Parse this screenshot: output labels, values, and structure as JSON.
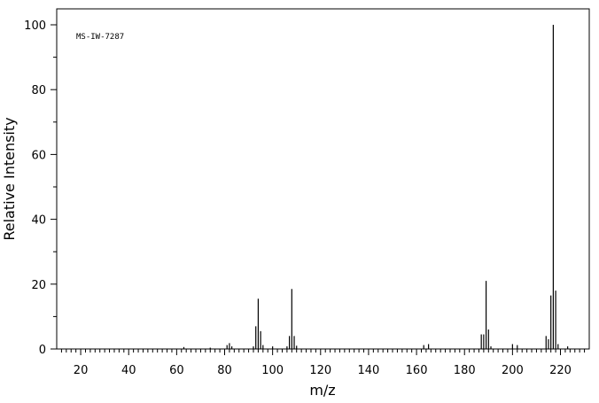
{
  "chart_data": {
    "type": "bar",
    "title": "",
    "annotation": "MS-IW-7287",
    "xlabel": "m/z",
    "ylabel": "Relative Intensity",
    "xlim": [
      10,
      232
    ],
    "ylim": [
      0,
      105
    ],
    "x_ticks": [
      20,
      40,
      60,
      80,
      100,
      120,
      140,
      160,
      180,
      200,
      220
    ],
    "x_tick_labels": [
      "20",
      "40",
      "60",
      "80",
      "100",
      "120",
      "140",
      "160",
      "180",
      "200",
      "220"
    ],
    "y_ticks": [
      0,
      20,
      40,
      60,
      80,
      100
    ],
    "y_tick_labels": [
      "0",
      "20",
      "40",
      "60",
      "80",
      "100"
    ],
    "grid": false,
    "legend": "none",
    "colors": {
      "bars": "#000000",
      "axes": "#000000",
      "background": "#ffffff"
    },
    "peaks": [
      {
        "mz": 63,
        "intensity": 0.6
      },
      {
        "mz": 74,
        "intensity": 0.4
      },
      {
        "mz": 81,
        "intensity": 1.2
      },
      {
        "mz": 82,
        "intensity": 1.8
      },
      {
        "mz": 83,
        "intensity": 0.8
      },
      {
        "mz": 92,
        "intensity": 0.8
      },
      {
        "mz": 93,
        "intensity": 7.0
      },
      {
        "mz": 94,
        "intensity": 15.5
      },
      {
        "mz": 95,
        "intensity": 5.5
      },
      {
        "mz": 96,
        "intensity": 1.2
      },
      {
        "mz": 100,
        "intensity": 0.8
      },
      {
        "mz": 106,
        "intensity": 0.8
      },
      {
        "mz": 107,
        "intensity": 4.0
      },
      {
        "mz": 108,
        "intensity": 18.5
      },
      {
        "mz": 109,
        "intensity": 4.0
      },
      {
        "mz": 110,
        "intensity": 1.0
      },
      {
        "mz": 163,
        "intensity": 1.2
      },
      {
        "mz": 165,
        "intensity": 1.5
      },
      {
        "mz": 187,
        "intensity": 4.5
      },
      {
        "mz": 188,
        "intensity": 4.5
      },
      {
        "mz": 189,
        "intensity": 21.0
      },
      {
        "mz": 190,
        "intensity": 6.0
      },
      {
        "mz": 191,
        "intensity": 0.8
      },
      {
        "mz": 200,
        "intensity": 1.5
      },
      {
        "mz": 202,
        "intensity": 1.2
      },
      {
        "mz": 214,
        "intensity": 4.0
      },
      {
        "mz": 215,
        "intensity": 3.0
      },
      {
        "mz": 216,
        "intensity": 16.5
      },
      {
        "mz": 217,
        "intensity": 100.0
      },
      {
        "mz": 218,
        "intensity": 18.0
      },
      {
        "mz": 219,
        "intensity": 1.5
      },
      {
        "mz": 223,
        "intensity": 0.8
      }
    ]
  }
}
